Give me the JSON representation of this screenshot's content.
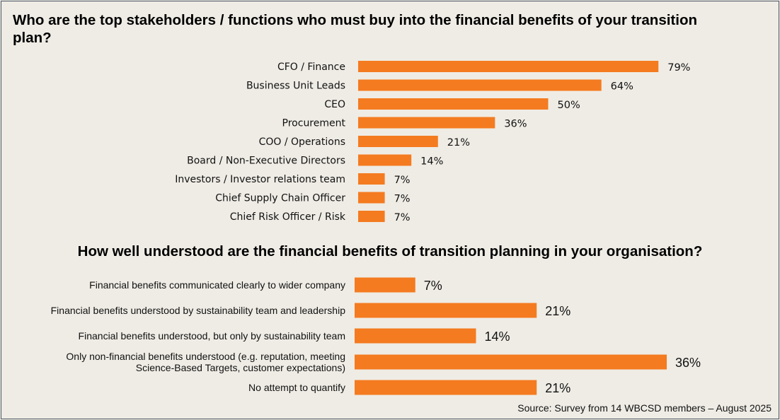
{
  "chart_data": [
    {
      "type": "bar",
      "orientation": "horizontal",
      "title": "Who are the top stakeholders / functions who must buy into the financial benefits of your transition plan?",
      "categories": [
        "CFO / Finance",
        "Business Unit Leads",
        "CEO",
        "Procurement",
        "COO / Operations",
        "Board / Non-Executive Directors",
        "Investors / Investor relations team",
        "Chief Supply Chain Officer",
        "Chief Risk Officer / Risk"
      ],
      "values": [
        79,
        64,
        50,
        36,
        21,
        14,
        7,
        7,
        7
      ],
      "value_labels": [
        "79%",
        "64%",
        "50%",
        "36%",
        "21%",
        "14%",
        "7%",
        "7%",
        "7%"
      ],
      "unit": "%",
      "xlim": [
        0,
        100
      ],
      "color": "#f47b20"
    },
    {
      "type": "bar",
      "orientation": "horizontal",
      "title": "How well understood are the financial benefits of transition planning in your organisation?",
      "categories": [
        [
          "Financial benefits communicated clearly to wider company"
        ],
        [
          "Financial benefits understood by sustainability team and leadership"
        ],
        [
          "Financial benefits understood, but only by sustainability team"
        ],
        [
          "Only non-financial benefits understood (e.g. reputation, meeting",
          "Science-Based Targets, customer expectations)"
        ],
        [
          "No attempt to quantify"
        ]
      ],
      "values": [
        7,
        21,
        14,
        36,
        21
      ],
      "value_labels": [
        "7%",
        "21%",
        "14%",
        "36%",
        "21%"
      ],
      "unit": "%",
      "xlim": [
        0,
        100
      ],
      "color": "#f47b20"
    }
  ],
  "source": "Source: Survey from 14 WBCSD members – August 2025"
}
